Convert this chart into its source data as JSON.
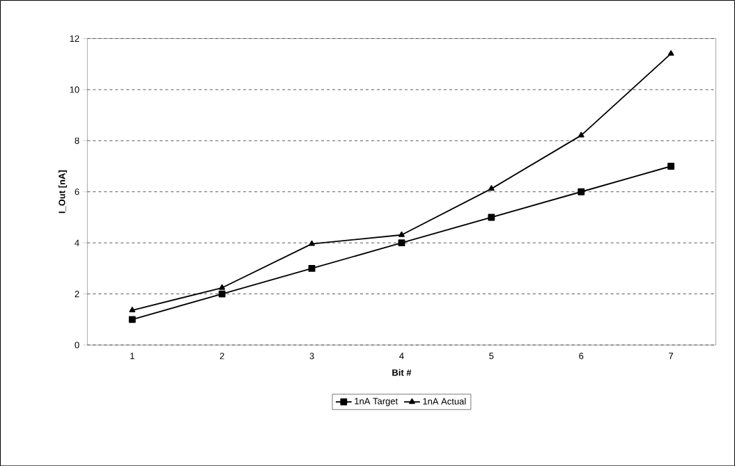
{
  "chart_data": {
    "type": "line",
    "xlabel": "Bit #",
    "ylabel": "I_Out [nA]",
    "categories": [
      "1",
      "2",
      "3",
      "4",
      "5",
      "6",
      "7"
    ],
    "series": [
      {
        "name": "1nA Target",
        "color": "#000000",
        "marker": "square",
        "values": [
          1,
          2,
          3,
          4,
          5,
          6,
          7
        ]
      },
      {
        "name": "1nA Actual",
        "color": "#000000",
        "marker": "triangle",
        "values": [
          1.36,
          2.24,
          3.96,
          4.31,
          6.12,
          8.21,
          11.41
        ]
      }
    ],
    "ylim": [
      0,
      12
    ],
    "yticks": [
      0,
      2,
      4,
      6,
      8,
      10,
      12
    ],
    "grid": "y",
    "legend": "bottom",
    "line_style": "solid"
  }
}
